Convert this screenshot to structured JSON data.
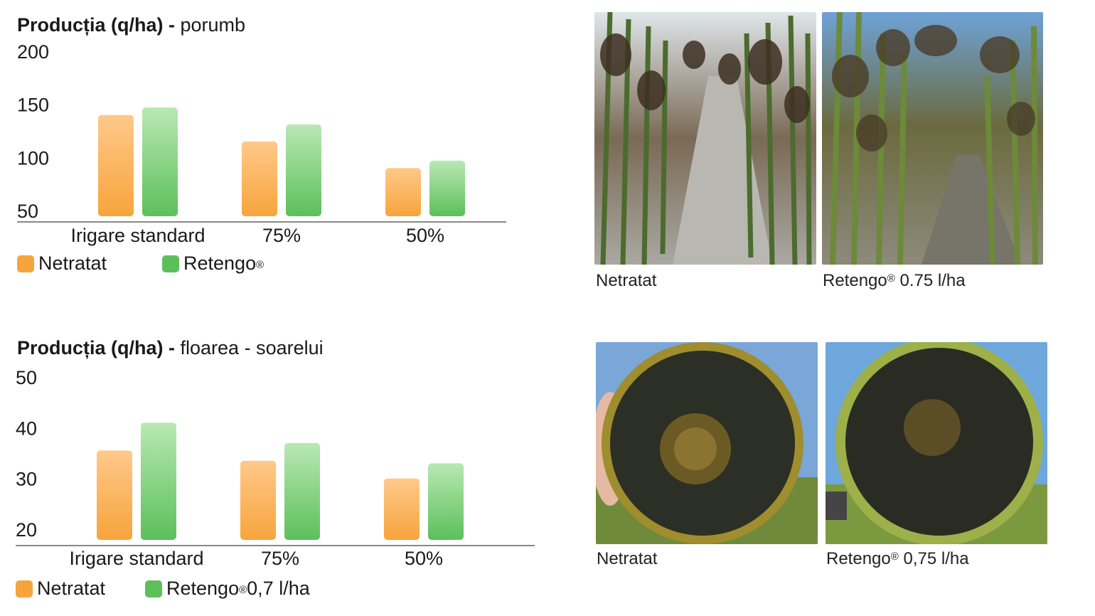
{
  "colors": {
    "orange": "#f7a43c",
    "green": "#5cc05a",
    "axis": "#888888"
  },
  "legend_labels": {
    "netratat": "Netratat",
    "retengo_brand": "Retengo",
    "registered": "®"
  },
  "chart_data": [
    {
      "type": "bar",
      "title_bold": "Producția (q/ha) -",
      "title_rest": "porumb",
      "categories": [
        "Irigare standard",
        "75%",
        "50%"
      ],
      "ylim": [
        50,
        200
      ],
      "yticks": [
        50,
        100,
        150,
        200
      ],
      "series": [
        {
          "name": "Netratat",
          "values": [
            140,
            115,
            90
          ]
        },
        {
          "name": "Retengo®",
          "values": [
            147,
            131,
            97
          ]
        }
      ],
      "legend": [
        "Netratat",
        "Retengo®"
      ],
      "legend_second_suffix": ""
    },
    {
      "type": "bar",
      "title_bold": "Producția (q/ha) -",
      "title_rest": "floarea - soarelui",
      "categories": [
        "Irigare standard",
        "75%",
        "50%"
      ],
      "ylim": [
        20,
        50
      ],
      "yticks": [
        20,
        30,
        40,
        50
      ],
      "series": [
        {
          "name": "Netratat",
          "values": [
            35.5,
            33.5,
            30
          ]
        },
        {
          "name": "Retengo® 0,7 l/ha",
          "values": [
            41,
            37,
            33
          ]
        }
      ],
      "legend": [
        "Netratat",
        "Retengo® 0,7 l/ha"
      ],
      "legend_second_suffix": " 0,7 l/ha"
    }
  ],
  "photos": {
    "corn_netratat": {
      "caption": "Netratat"
    },
    "corn_retengo": {
      "caption_brand": "Retengo",
      "caption_rest": " 0.75 l/ha"
    },
    "sun_netratat": {
      "caption": "Netratat"
    },
    "sun_retengo": {
      "caption_brand": "Retengo",
      "caption_rest": " 0,75 l/ha"
    }
  }
}
